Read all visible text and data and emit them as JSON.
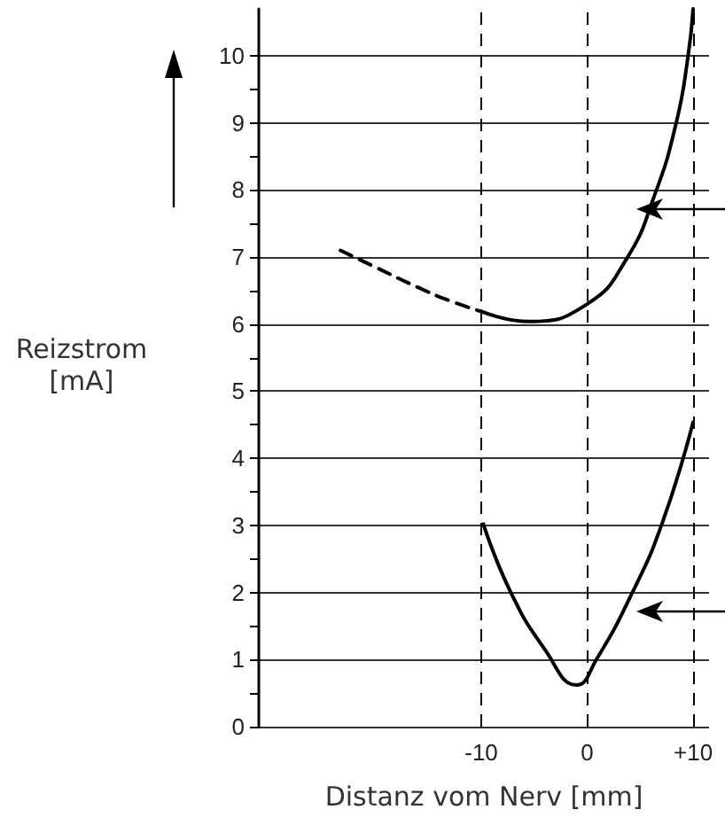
{
  "chart_data": {
    "type": "line",
    "xlabel": "Distanz vom Nerv [mm]",
    "ylabel": "Reizstrom [mA]",
    "xlim": [
      -31,
      11.5
    ],
    "ylim": [
      0,
      10.7
    ],
    "xticks": [
      -10,
      0,
      {
        "value": 10,
        "label": "+10"
      }
    ],
    "yticks": [
      0,
      {
        "value": 0.5,
        "label": null
      },
      1,
      {
        "value": 1.5,
        "label": null
      },
      2,
      {
        "value": 2.5,
        "label": null
      },
      3,
      {
        "value": 3.5,
        "label": null
      },
      4,
      {
        "value": 4.5,
        "label": null
      },
      5,
      {
        "value": 5.5,
        "label": null
      },
      6,
      {
        "value": 6.5,
        "label": null
      },
      7,
      {
        "value": 7.5,
        "label": null
      },
      8,
      {
        "value": 8.5,
        "label": null
      },
      9,
      {
        "value": 9.5,
        "label": null
      },
      10
    ],
    "grid": "y",
    "marker": "none",
    "ref_lines": [
      {
        "axis": "x",
        "value": -10,
        "color": "#000000",
        "line_style": "dashed"
      },
      {
        "axis": "x",
        "value": 0,
        "color": "#000000",
        "line_style": "dashed"
      },
      {
        "axis": "x",
        "value": 10,
        "color": "#000000",
        "line_style": "dashed"
      }
    ],
    "series": [
      {
        "color": "#000000",
        "line_style": "dashed",
        "x": [
          -23.3,
          -20,
          -16,
          -13,
          -10
        ],
        "values": [
          7.1,
          6.85,
          6.55,
          6.35,
          6.19
        ]
      },
      {
        "color": "#000000",
        "line_style": "solid",
        "x": [
          -10,
          -5.5,
          0,
          3.7,
          6.4,
          8.4,
          9.5,
          10
        ],
        "values": [
          6.19,
          6.04,
          6.3,
          6.97,
          7.94,
          9.0,
          9.97,
          10.7
        ]
      },
      {
        "color": "#000000",
        "line_style": "solid",
        "x": [
          -9.8,
          -7.3,
          -4,
          -1,
          0.9,
          4.2,
          7,
          10
        ],
        "values": [
          3.02,
          2.03,
          1.15,
          0.62,
          1.01,
          1.98,
          3.0,
          4.54
        ]
      }
    ]
  }
}
